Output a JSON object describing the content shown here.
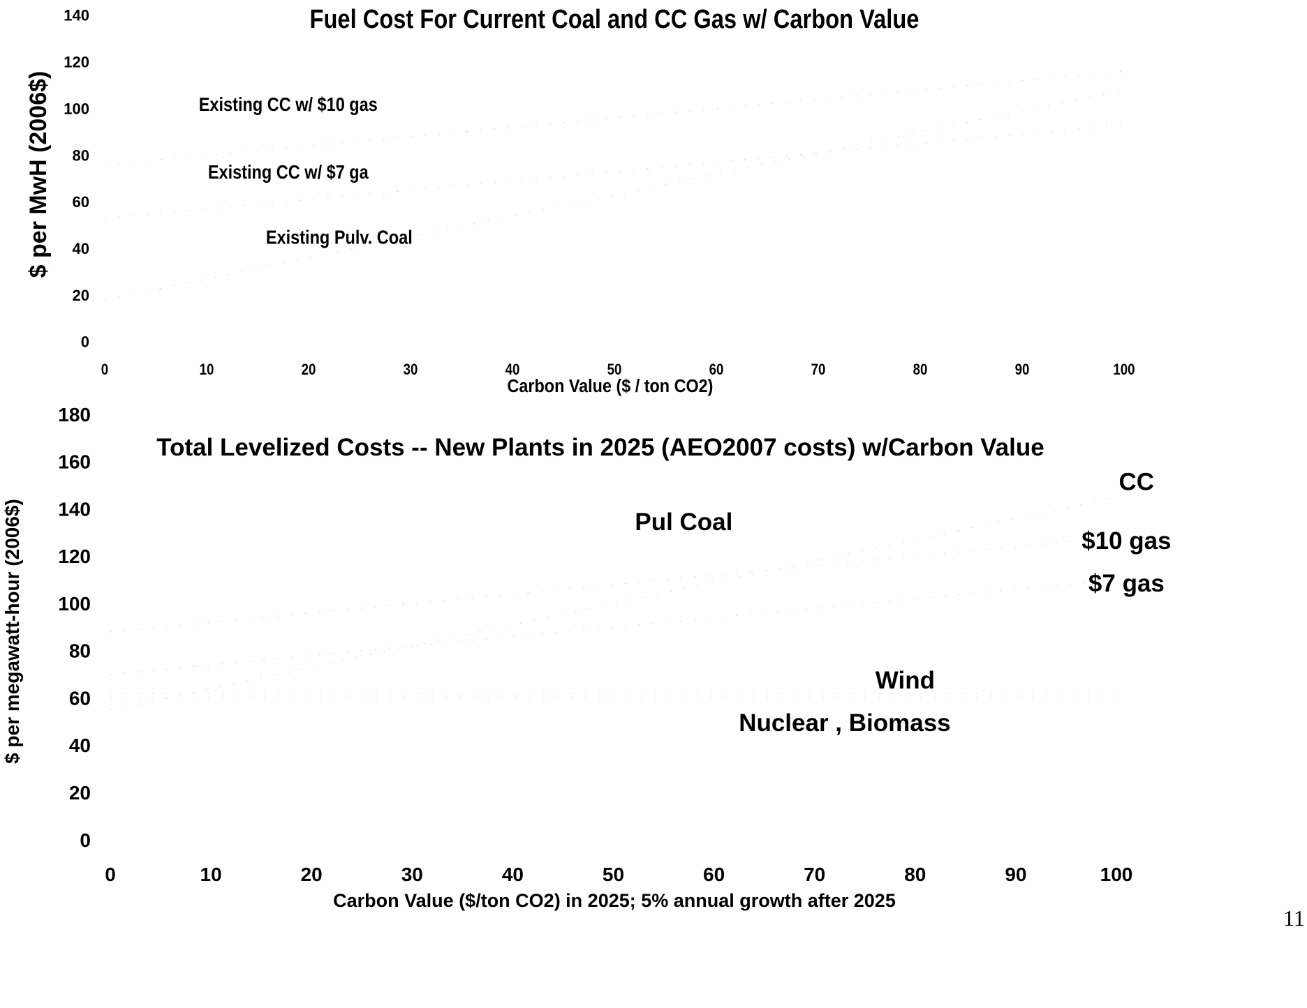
{
  "page_number": "11",
  "chart_data": [
    {
      "type": "line",
      "title": "Fuel Cost For Current Coal and CC Gas w/ Carbon Value",
      "xlabel": "Carbon Value ($ / ton CO2)",
      "ylabel": "$ per MwH (2006$)",
      "xlim": [
        0,
        100
      ],
      "ylim": [
        0,
        140
      ],
      "x_ticks": [
        "0",
        "10",
        "20",
        "30",
        "40",
        "50",
        "60",
        "70",
        "80",
        "90",
        "100"
      ],
      "y_ticks": [
        "0",
        "20",
        "40",
        "60",
        "80",
        "100",
        "120",
        "140"
      ],
      "grid": false,
      "annotations": [
        {
          "text": "Existing CC w/ $10 gas",
          "x": 18,
          "y": 99
        },
        {
          "text": "Existing CC w/ $7 ga",
          "x": 18,
          "y": 70
        },
        {
          "text": "Existing Pulv. Coal",
          "x": 23,
          "y": 42
        }
      ],
      "series": [
        {
          "x": [
            0,
            10,
            20,
            30,
            40,
            50,
            60,
            70,
            80,
            90,
            100
          ],
          "values": [
            76,
            80,
            84,
            88,
            92,
            96,
            100,
            104,
            108,
            112,
            116
          ]
        },
        {
          "x": [
            0,
            10,
            20,
            30,
            40,
            50,
            60,
            70,
            80,
            90,
            100
          ],
          "values": [
            53,
            57,
            61,
            65,
            69,
            73,
            77,
            81,
            85,
            89,
            93
          ]
        },
        {
          "x": [
            0,
            10,
            20,
            30,
            40,
            50,
            60,
            70,
            80,
            90,
            100
          ],
          "values": [
            18,
            27,
            36,
            45,
            54,
            63,
            72,
            81,
            90,
            99,
            108
          ]
        }
      ]
    },
    {
      "type": "line",
      "title": "Total Levelized Costs -- New Plants in 2025 (AEO2007 costs) w/Carbon Value",
      "xlabel": "Carbon Value ($/ton CO2) in 2025; 5% annual growth after 2025",
      "ylabel": "$ per megawatt-hour (2006$)",
      "xlim": [
        0,
        100
      ],
      "ylim": [
        0,
        180
      ],
      "x_ticks": [
        "0",
        "10",
        "20",
        "30",
        "40",
        "50",
        "60",
        "70",
        "80",
        "90",
        "100"
      ],
      "y_ticks": [
        "0",
        "20",
        "40",
        "60",
        "80",
        "100",
        "120",
        "140",
        "160",
        "180"
      ],
      "grid": false,
      "annotations": [
        {
          "text": "Pul Coal",
          "x": 57,
          "y": 131
        },
        {
          "text": "CC",
          "x": 102,
          "y": 148
        },
        {
          "text": "$10 gas",
          "x": 101,
          "y": 123
        },
        {
          "text": "$7 gas",
          "x": 101,
          "y": 105
        },
        {
          "text": "Wind",
          "x": 79,
          "y": 64
        },
        {
          "text": "Nuclear , Biomass",
          "x": 73,
          "y": 46
        }
      ],
      "series": [
        {
          "x": [
            0,
            10,
            20,
            30,
            40,
            50,
            60,
            70,
            80,
            90,
            100
          ],
          "values": [
            55,
            64,
            73,
            82,
            91,
            100,
            109,
            118,
            127,
            136,
            145
          ]
        },
        {
          "x": [
            0,
            10,
            20,
            30,
            40,
            50,
            60,
            70,
            80,
            90,
            100
          ],
          "values": [
            88,
            92,
            96,
            100,
            104,
            108,
            112,
            116,
            120,
            124,
            128
          ]
        },
        {
          "x": [
            0,
            10,
            20,
            30,
            40,
            50,
            60,
            70,
            80,
            90,
            100
          ],
          "values": [
            70,
            74,
            78,
            82,
            86,
            90,
            94,
            98,
            102,
            106,
            110
          ]
        },
        {
          "x": [
            0,
            10,
            20,
            30,
            40,
            50,
            60,
            70,
            80,
            90,
            100
          ],
          "values": [
            62,
            62,
            62,
            62,
            62,
            62,
            62,
            62,
            62,
            62,
            62
          ]
        },
        {
          "x": [
            0,
            10,
            20,
            30,
            40,
            50,
            60,
            70,
            80,
            90,
            100
          ],
          "values": [
            60,
            60,
            60,
            60,
            60,
            60,
            60,
            60,
            60,
            60,
            60
          ]
        }
      ]
    }
  ]
}
